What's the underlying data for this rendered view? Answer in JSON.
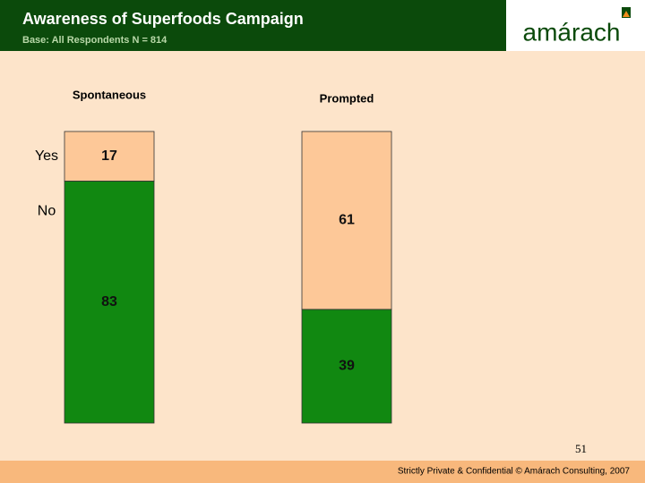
{
  "header": {
    "title": "Awareness of Superfoods Campaign",
    "subtitle": "Base: All Respondents N = 814",
    "logo": "amárach"
  },
  "chart_data": {
    "type": "bar",
    "stacked": true,
    "categories": [
      "Spontaneous",
      "Prompted"
    ],
    "series": [
      {
        "name": "Yes",
        "color": "#fdc898",
        "values": [
          17,
          61
        ]
      },
      {
        "name": "No",
        "color": "#118811",
        "values": [
          83,
          39
        ]
      }
    ]
  },
  "footer": {
    "page": "51",
    "text": "Strictly Private & Confidential © Amárach Consulting, 2007"
  }
}
